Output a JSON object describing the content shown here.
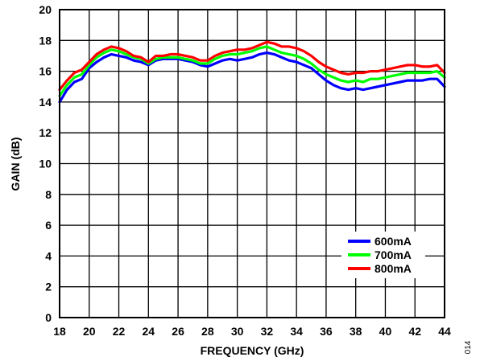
{
  "chart_data": {
    "type": "line",
    "title": "",
    "xlabel": "FREQUENCY (GHz)",
    "ylabel": "GAIN (dB)",
    "xlim": [
      18,
      44
    ],
    "ylim": [
      0,
      20
    ],
    "x_ticks": [
      "18",
      "20",
      "22",
      "24",
      "26",
      "28",
      "30",
      "32",
      "34",
      "36",
      "38",
      "40",
      "42",
      "44"
    ],
    "y_ticks": [
      "0",
      "2",
      "4",
      "6",
      "8",
      "10",
      "12",
      "14",
      "16",
      "18",
      "20"
    ],
    "grid": true,
    "legend_position": "bottom-right",
    "figure_id": "014",
    "series": [
      {
        "name": "600mA",
        "color": "#0000ff",
        "x": [
          18,
          18.5,
          19,
          19.5,
          20,
          20.5,
          21,
          21.5,
          22,
          22.5,
          23,
          23.5,
          24,
          24.5,
          25,
          25.5,
          26,
          26.5,
          27,
          27.5,
          28,
          28.5,
          29,
          29.5,
          30,
          30.5,
          31,
          31.5,
          32,
          32.5,
          33,
          33.5,
          34,
          34.5,
          35,
          35.5,
          36,
          36.5,
          37,
          37.5,
          38,
          38.5,
          39,
          39.5,
          40,
          40.5,
          41,
          41.5,
          42,
          42.5,
          43,
          43.5,
          44
        ],
        "values": [
          14.0,
          14.8,
          15.3,
          15.5,
          16.2,
          16.6,
          16.9,
          17.1,
          17.0,
          16.9,
          16.7,
          16.6,
          16.4,
          16.7,
          16.8,
          16.8,
          16.8,
          16.7,
          16.6,
          16.4,
          16.3,
          16.5,
          16.7,
          16.8,
          16.7,
          16.8,
          16.9,
          17.1,
          17.2,
          17.1,
          16.9,
          16.7,
          16.6,
          16.4,
          16.2,
          15.8,
          15.4,
          15.1,
          14.9,
          14.8,
          14.9,
          14.8,
          14.9,
          15.0,
          15.1,
          15.2,
          15.3,
          15.4,
          15.4,
          15.4,
          15.5,
          15.5,
          15.0
        ]
      },
      {
        "name": "700mA",
        "color": "#00ff00",
        "x": [
          18,
          18.5,
          19,
          19.5,
          20,
          20.5,
          21,
          21.5,
          22,
          22.5,
          23,
          23.5,
          24,
          24.5,
          25,
          25.5,
          26,
          26.5,
          27,
          27.5,
          28,
          28.5,
          29,
          29.5,
          30,
          30.5,
          31,
          31.5,
          32,
          32.5,
          33,
          33.5,
          34,
          34.5,
          35,
          35.5,
          36,
          36.5,
          37,
          37.5,
          38,
          38.5,
          39,
          39.5,
          40,
          40.5,
          41,
          41.5,
          42,
          42.5,
          43,
          43.5,
          44
        ],
        "values": [
          14.4,
          15.1,
          15.6,
          15.8,
          16.4,
          16.9,
          17.2,
          17.4,
          17.3,
          17.1,
          16.9,
          16.8,
          16.5,
          16.8,
          16.9,
          16.9,
          16.9,
          16.8,
          16.7,
          16.5,
          16.5,
          16.8,
          17.0,
          17.1,
          17.1,
          17.2,
          17.3,
          17.5,
          17.6,
          17.4,
          17.2,
          17.1,
          17.0,
          16.8,
          16.5,
          16.1,
          15.8,
          15.6,
          15.4,
          15.3,
          15.4,
          15.3,
          15.5,
          15.5,
          15.6,
          15.7,
          15.8,
          15.9,
          15.9,
          15.9,
          15.9,
          16.0,
          15.6
        ]
      },
      {
        "name": "800mA",
        "color": "#ff0000",
        "x": [
          18,
          18.5,
          19,
          19.5,
          20,
          20.5,
          21,
          21.5,
          22,
          22.5,
          23,
          23.5,
          24,
          24.5,
          25,
          25.5,
          26,
          26.5,
          27,
          27.5,
          28,
          28.5,
          29,
          29.5,
          30,
          30.5,
          31,
          31.5,
          32,
          32.5,
          33,
          33.5,
          34,
          34.5,
          35,
          35.5,
          36,
          36.5,
          37,
          37.5,
          38,
          38.5,
          39,
          39.5,
          40,
          40.5,
          41,
          41.5,
          42,
          42.5,
          43,
          43.5,
          44
        ],
        "values": [
          14.8,
          15.4,
          15.9,
          16.1,
          16.6,
          17.1,
          17.4,
          17.6,
          17.5,
          17.3,
          17.0,
          16.9,
          16.6,
          17.0,
          17.0,
          17.1,
          17.1,
          17.0,
          16.9,
          16.7,
          16.7,
          17.0,
          17.2,
          17.3,
          17.4,
          17.4,
          17.5,
          17.7,
          17.9,
          17.8,
          17.6,
          17.6,
          17.5,
          17.3,
          17.0,
          16.6,
          16.3,
          16.1,
          15.9,
          15.8,
          15.9,
          15.9,
          16.0,
          16.0,
          16.1,
          16.2,
          16.3,
          16.4,
          16.4,
          16.3,
          16.3,
          16.4,
          15.9
        ]
      }
    ]
  }
}
